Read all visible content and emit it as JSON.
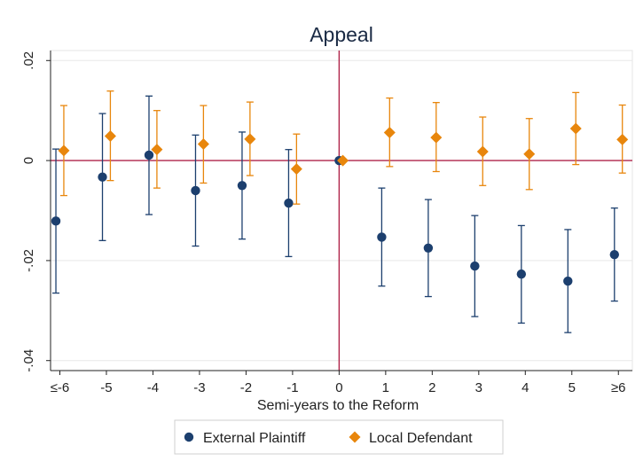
{
  "chart_data": {
    "type": "scatter",
    "title": "Appeal",
    "xlabel": "Semi-years to the Reform",
    "ylabel": "",
    "categories": [
      "≤-6",
      "-5",
      "-4",
      "-3",
      "-2",
      "-1",
      "0",
      "1",
      "2",
      "3",
      "4",
      "5",
      "≥6"
    ],
    "x": [
      -6,
      -5,
      -4,
      -3,
      -2,
      -1,
      0,
      1,
      2,
      3,
      4,
      5,
      6
    ],
    "ylim": [
      -0.042,
      0.022
    ],
    "yticks": [
      0.02,
      0,
      -0.02,
      -0.04
    ],
    "ytick_labels": [
      ".02",
      "0",
      "-.02",
      "-.04"
    ],
    "reference_lines": {
      "x": 0,
      "y": 0,
      "color": "#b0244a"
    },
    "grid": true,
    "legend_position": "bottom",
    "series": [
      {
        "name": "External Plaintiff",
        "marker": "circle",
        "color": "#1c3f6e",
        "values": [
          -0.0121,
          -0.0033,
          0.0011,
          -0.006,
          -0.005,
          -0.0085,
          0.0,
          -0.0153,
          -0.0175,
          -0.0211,
          -0.0227,
          -0.0241,
          -0.0188
        ],
        "lower": [
          -0.0265,
          -0.016,
          -0.0108,
          -0.0171,
          -0.0157,
          -0.0192,
          0.0,
          -0.0251,
          -0.0272,
          -0.0312,
          -0.0325,
          -0.0344,
          -0.0281
        ],
        "upper": [
          0.0023,
          0.0094,
          0.0129,
          0.0051,
          0.0057,
          0.0022,
          0.0,
          -0.0055,
          -0.0078,
          -0.011,
          -0.013,
          -0.0138,
          -0.0095
        ]
      },
      {
        "name": "Local Defendant",
        "marker": "diamond",
        "color": "#e8860c",
        "values": [
          0.002,
          0.0049,
          0.0022,
          0.0033,
          0.0043,
          -0.0017,
          0.0,
          0.0056,
          0.0046,
          0.0018,
          0.0013,
          0.0064,
          0.0042
        ],
        "lower": [
          -0.007,
          -0.004,
          -0.0055,
          -0.0045,
          -0.003,
          -0.0087,
          0.0,
          -0.0012,
          -0.0022,
          -0.005,
          -0.0058,
          -0.0008,
          -0.0025
        ],
        "upper": [
          0.011,
          0.0139,
          0.01,
          0.011,
          0.0117,
          0.0053,
          0.0,
          0.0125,
          0.0116,
          0.0087,
          0.0084,
          0.0136,
          0.0111
        ]
      }
    ]
  }
}
